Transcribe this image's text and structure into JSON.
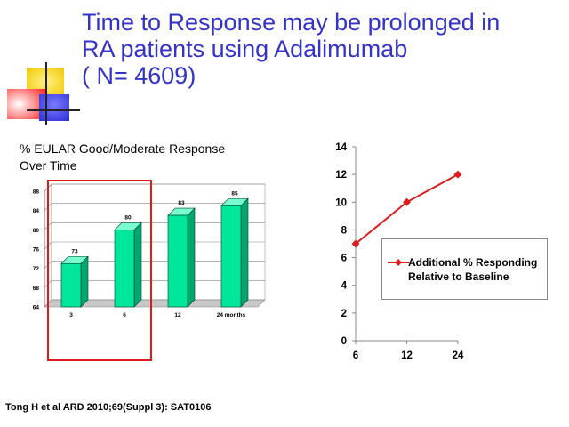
{
  "slide": {
    "title_lines": [
      "Time to Response may be prolonged in",
      "RA patients using Adalimumab",
      "( N= 4609)"
    ],
    "left_caption_lines": [
      "% EULAR Good/Moderate Response",
      "Over Time"
    ],
    "citation": "Tong H et al ARD 2010;69(Suppl 3): SAT0106",
    "colors": {
      "title": "#3333cc",
      "bar": "#00e69a",
      "line": "#e0191c",
      "highlight": "#e0191c"
    },
    "logo_icon": "cross-squares-logo"
  },
  "chart_data": [
    {
      "type": "bar",
      "title": "",
      "categories": [
        "3",
        "6",
        "12",
        "24 months"
      ],
      "values": [
        73,
        80,
        83,
        85
      ],
      "data_labels": [
        "73",
        "80",
        "83",
        "85"
      ],
      "ylim": [
        64,
        88
      ],
      "yticks": [
        64,
        68,
        72,
        76,
        80,
        84,
        88
      ],
      "grid": true,
      "style": "3d"
    },
    {
      "type": "line",
      "title": "",
      "x": [
        "6",
        "12",
        "24"
      ],
      "series": [
        {
          "name": "Additional % Responding Relative to Baseline",
          "values": [
            7,
            10,
            12
          ]
        }
      ],
      "legend_lines": [
        "Additional % Responding",
        "Relative to Baseline"
      ],
      "ylim": [
        0,
        14
      ],
      "yticks": [
        0,
        2,
        4,
        6,
        8,
        10,
        12,
        14
      ],
      "grid": false,
      "legend_position": "center-right"
    }
  ]
}
